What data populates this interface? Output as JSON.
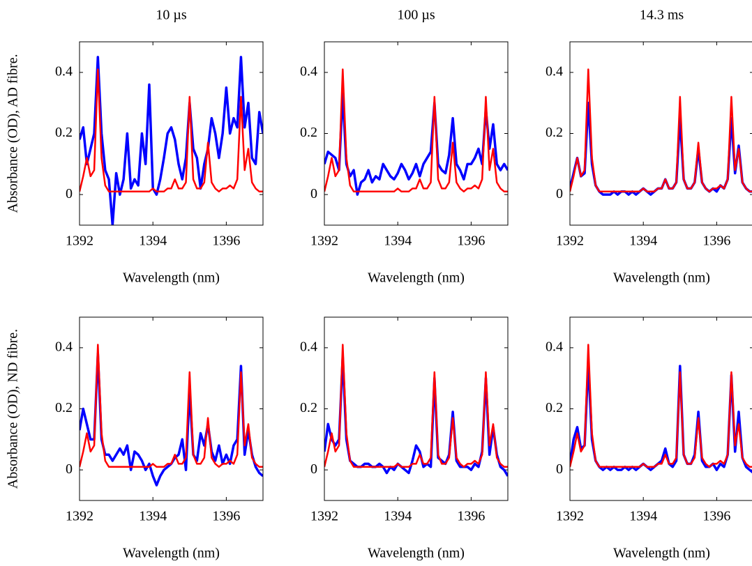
{
  "chart_data": [
    {
      "type": "line",
      "title": "10 µs",
      "ylabel": "Absorbance (OD), AD fibre.",
      "xlabel": "Wavelength (nm)",
      "xlim": [
        1392,
        1397
      ],
      "ylim": [
        -0.1,
        0.5
      ],
      "xticks": [
        1392,
        1394,
        1396
      ],
      "yticks": [
        0,
        0.2,
        0.4
      ],
      "x": [
        1392,
        1392.1,
        1392.2,
        1392.3,
        1392.4,
        1392.5,
        1392.6,
        1392.7,
        1392.8,
        1392.9,
        1393,
        1393.1,
        1393.2,
        1393.3,
        1393.4,
        1393.5,
        1393.6,
        1393.7,
        1393.8,
        1393.9,
        1394,
        1394.1,
        1394.2,
        1394.3,
        1394.4,
        1394.5,
        1394.6,
        1394.7,
        1394.8,
        1394.9,
        1395,
        1395.1,
        1395.2,
        1395.3,
        1395.4,
        1395.5,
        1395.6,
        1395.7,
        1395.8,
        1395.9,
        1396,
        1396.1,
        1396.2,
        1396.3,
        1396.4,
        1396.5,
        1396.6,
        1396.7,
        1396.8,
        1396.9,
        1397
      ],
      "series": [
        {
          "color": "#0000ff",
          "values": [
            0.18,
            0.22,
            0.1,
            0.15,
            0.2,
            0.45,
            0.2,
            0.08,
            0.05,
            -0.1,
            0.07,
            0.0,
            0.05,
            0.2,
            0.02,
            0.05,
            0.03,
            0.2,
            0.1,
            0.36,
            0.02,
            0.0,
            0.05,
            0.12,
            0.2,
            0.22,
            0.18,
            0.1,
            0.05,
            0.12,
            0.3,
            0.15,
            0.12,
            0.02,
            0.1,
            0.15,
            0.25,
            0.2,
            0.12,
            0.2,
            0.35,
            0.2,
            0.25,
            0.22,
            0.45,
            0.22,
            0.3,
            0.12,
            0.1,
            0.27,
            0.2
          ]
        },
        {
          "color": "#ff0000",
          "values": [
            0.01,
            0.06,
            0.12,
            0.06,
            0.08,
            0.41,
            0.12,
            0.03,
            0.01,
            0.01,
            0.01,
            0.01,
            0.01,
            0.01,
            0.01,
            0.01,
            0.01,
            0.01,
            0.01,
            0.01,
            0.02,
            0.01,
            0.01,
            0.01,
            0.02,
            0.02,
            0.05,
            0.02,
            0.02,
            0.04,
            0.32,
            0.05,
            0.02,
            0.02,
            0.04,
            0.17,
            0.04,
            0.02,
            0.01,
            0.02,
            0.02,
            0.03,
            0.02,
            0.05,
            0.32,
            0.08,
            0.15,
            0.04,
            0.02,
            0.01,
            0.01
          ]
        }
      ]
    },
    {
      "type": "line",
      "title": "100 µs",
      "xlabel": "Wavelength (nm)",
      "xlim": [
        1392,
        1397
      ],
      "ylim": [
        -0.1,
        0.5
      ],
      "xticks": [
        1392,
        1394,
        1396
      ],
      "yticks": [
        0,
        0.2,
        0.4
      ],
      "x": [
        1392,
        1392.1,
        1392.2,
        1392.3,
        1392.4,
        1392.5,
        1392.6,
        1392.7,
        1392.8,
        1392.9,
        1393,
        1393.1,
        1393.2,
        1393.3,
        1393.4,
        1393.5,
        1393.6,
        1393.7,
        1393.8,
        1393.9,
        1394,
        1394.1,
        1394.2,
        1394.3,
        1394.4,
        1394.5,
        1394.6,
        1394.7,
        1394.8,
        1394.9,
        1395,
        1395.1,
        1395.2,
        1395.3,
        1395.4,
        1395.5,
        1395.6,
        1395.7,
        1395.8,
        1395.9,
        1396,
        1396.1,
        1396.2,
        1396.3,
        1396.4,
        1396.5,
        1396.6,
        1396.7,
        1396.8,
        1396.9,
        1397
      ],
      "series": [
        {
          "color": "#0000ff",
          "values": [
            0.1,
            0.14,
            0.13,
            0.12,
            0.08,
            0.33,
            0.1,
            0.06,
            0.08,
            0.0,
            0.04,
            0.05,
            0.08,
            0.04,
            0.06,
            0.05,
            0.1,
            0.08,
            0.06,
            0.05,
            0.07,
            0.1,
            0.08,
            0.05,
            0.07,
            0.1,
            0.06,
            0.1,
            0.12,
            0.14,
            0.3,
            0.1,
            0.08,
            0.07,
            0.13,
            0.25,
            0.1,
            0.08,
            0.05,
            0.1,
            0.1,
            0.12,
            0.15,
            0.1,
            0.28,
            0.15,
            0.23,
            0.1,
            0.08,
            0.1,
            0.08
          ]
        },
        {
          "color": "#ff0000",
          "values": [
            0.01,
            0.06,
            0.12,
            0.06,
            0.08,
            0.41,
            0.12,
            0.03,
            0.01,
            0.01,
            0.01,
            0.01,
            0.01,
            0.01,
            0.01,
            0.01,
            0.01,
            0.01,
            0.01,
            0.01,
            0.02,
            0.01,
            0.01,
            0.01,
            0.02,
            0.02,
            0.05,
            0.02,
            0.02,
            0.04,
            0.32,
            0.05,
            0.02,
            0.02,
            0.04,
            0.17,
            0.04,
            0.02,
            0.01,
            0.02,
            0.02,
            0.03,
            0.02,
            0.05,
            0.32,
            0.08,
            0.15,
            0.04,
            0.02,
            0.01,
            0.01
          ]
        }
      ]
    },
    {
      "type": "line",
      "title": "14.3 ms",
      "xlabel": "Wavelength (nm)",
      "xlim": [
        1392,
        1397
      ],
      "ylim": [
        -0.1,
        0.5
      ],
      "xticks": [
        1392,
        1394,
        1396
      ],
      "yticks": [
        0,
        0.2,
        0.4
      ],
      "x": [
        1392,
        1392.1,
        1392.2,
        1392.3,
        1392.4,
        1392.5,
        1392.6,
        1392.7,
        1392.8,
        1392.9,
        1393,
        1393.1,
        1393.2,
        1393.3,
        1393.4,
        1393.5,
        1393.6,
        1393.7,
        1393.8,
        1393.9,
        1394,
        1394.1,
        1394.2,
        1394.3,
        1394.4,
        1394.5,
        1394.6,
        1394.7,
        1394.8,
        1394.9,
        1395,
        1395.1,
        1395.2,
        1395.3,
        1395.4,
        1395.5,
        1395.6,
        1395.7,
        1395.8,
        1395.9,
        1396,
        1396.1,
        1396.2,
        1396.3,
        1396.4,
        1396.5,
        1396.6,
        1396.7,
        1396.8,
        1396.9,
        1397
      ],
      "series": [
        {
          "color": "#0000ff",
          "values": [
            0.02,
            0.07,
            0.12,
            0.06,
            0.07,
            0.3,
            0.1,
            0.03,
            0.01,
            0.0,
            0.0,
            0.0,
            0.01,
            0.0,
            0.01,
            0.01,
            0.0,
            0.01,
            0.0,
            0.01,
            0.02,
            0.01,
            0.0,
            0.01,
            0.02,
            0.02,
            0.05,
            0.02,
            0.02,
            0.04,
            0.25,
            0.05,
            0.02,
            0.02,
            0.04,
            0.15,
            0.04,
            0.02,
            0.01,
            0.02,
            0.01,
            0.03,
            0.02,
            0.05,
            0.25,
            0.07,
            0.16,
            0.04,
            0.02,
            0.01,
            0.01
          ]
        },
        {
          "color": "#ff0000",
          "values": [
            0.01,
            0.06,
            0.12,
            0.06,
            0.08,
            0.41,
            0.12,
            0.03,
            0.01,
            0.01,
            0.01,
            0.01,
            0.01,
            0.01,
            0.01,
            0.01,
            0.01,
            0.01,
            0.01,
            0.01,
            0.02,
            0.01,
            0.01,
            0.01,
            0.02,
            0.02,
            0.05,
            0.02,
            0.02,
            0.04,
            0.32,
            0.05,
            0.02,
            0.02,
            0.04,
            0.17,
            0.04,
            0.02,
            0.01,
            0.02,
            0.02,
            0.03,
            0.02,
            0.05,
            0.32,
            0.08,
            0.15,
            0.04,
            0.02,
            0.01,
            0.01
          ]
        }
      ]
    },
    {
      "type": "line",
      "ylabel": "Absorbance (OD), ND fibre.",
      "xlabel": "Wavelength (nm)",
      "xlim": [
        1392,
        1397
      ],
      "ylim": [
        -0.1,
        0.5
      ],
      "xticks": [
        1392,
        1394,
        1396
      ],
      "yticks": [
        0,
        0.2,
        0.4
      ],
      "x": [
        1392,
        1392.1,
        1392.2,
        1392.3,
        1392.4,
        1392.5,
        1392.6,
        1392.7,
        1392.8,
        1392.9,
        1393,
        1393.1,
        1393.2,
        1393.3,
        1393.4,
        1393.5,
        1393.6,
        1393.7,
        1393.8,
        1393.9,
        1394,
        1394.1,
        1394.2,
        1394.3,
        1394.4,
        1394.5,
        1394.6,
        1394.7,
        1394.8,
        1394.9,
        1395,
        1395.1,
        1395.2,
        1395.3,
        1395.4,
        1395.5,
        1395.6,
        1395.7,
        1395.8,
        1395.9,
        1396,
        1396.1,
        1396.2,
        1396.3,
        1396.4,
        1396.5,
        1396.6,
        1396.7,
        1396.8,
        1396.9,
        1397
      ],
      "series": [
        {
          "color": "#0000ff",
          "values": [
            0.13,
            0.2,
            0.15,
            0.1,
            0.1,
            0.38,
            0.1,
            0.05,
            0.05,
            0.03,
            0.05,
            0.07,
            0.05,
            0.08,
            0.0,
            0.06,
            0.05,
            0.03,
            0.0,
            0.02,
            -0.02,
            -0.05,
            -0.02,
            0.0,
            0.01,
            0.02,
            0.04,
            0.05,
            0.1,
            0.0,
            0.26,
            0.05,
            0.03,
            0.12,
            0.08,
            0.15,
            0.06,
            0.03,
            0.08,
            0.02,
            0.05,
            0.02,
            0.08,
            0.1,
            0.34,
            0.05,
            0.13,
            0.05,
            0.01,
            -0.01,
            -0.02
          ]
        },
        {
          "color": "#ff0000",
          "values": [
            0.01,
            0.06,
            0.12,
            0.06,
            0.08,
            0.41,
            0.12,
            0.03,
            0.01,
            0.01,
            0.01,
            0.01,
            0.01,
            0.01,
            0.01,
            0.01,
            0.01,
            0.01,
            0.01,
            0.01,
            0.02,
            0.01,
            0.01,
            0.01,
            0.02,
            0.02,
            0.05,
            0.02,
            0.02,
            0.04,
            0.32,
            0.05,
            0.02,
            0.02,
            0.04,
            0.17,
            0.04,
            0.02,
            0.01,
            0.02,
            0.02,
            0.03,
            0.02,
            0.05,
            0.32,
            0.08,
            0.15,
            0.04,
            0.02,
            0.01,
            0.01
          ]
        }
      ]
    },
    {
      "type": "line",
      "xlabel": "Wavelength (nm)",
      "xlim": [
        1392,
        1397
      ],
      "ylim": [
        -0.1,
        0.5
      ],
      "xticks": [
        1392,
        1394,
        1396
      ],
      "yticks": [
        0,
        0.2,
        0.4
      ],
      "x": [
        1392,
        1392.1,
        1392.2,
        1392.3,
        1392.4,
        1392.5,
        1392.6,
        1392.7,
        1392.8,
        1392.9,
        1393,
        1393.1,
        1393.2,
        1393.3,
        1393.4,
        1393.5,
        1393.6,
        1393.7,
        1393.8,
        1393.9,
        1394,
        1394.1,
        1394.2,
        1394.3,
        1394.4,
        1394.5,
        1394.6,
        1394.7,
        1394.8,
        1394.9,
        1395,
        1395.1,
        1395.2,
        1395.3,
        1395.4,
        1395.5,
        1395.6,
        1395.7,
        1395.8,
        1395.9,
        1396,
        1396.1,
        1396.2,
        1396.3,
        1396.4,
        1396.5,
        1396.6,
        1396.7,
        1396.8,
        1396.9,
        1397
      ],
      "series": [
        {
          "color": "#0000ff",
          "values": [
            0.06,
            0.15,
            0.1,
            0.08,
            0.1,
            0.37,
            0.1,
            0.03,
            0.02,
            0.01,
            0.01,
            0.02,
            0.02,
            0.01,
            0.01,
            0.02,
            0.01,
            -0.01,
            0.01,
            0.0,
            0.02,
            0.01,
            0.0,
            -0.01,
            0.03,
            0.08,
            0.06,
            0.01,
            0.02,
            0.01,
            0.3,
            0.04,
            0.03,
            0.02,
            0.05,
            0.19,
            0.03,
            0.01,
            0.01,
            0.01,
            0.0,
            0.02,
            0.01,
            0.06,
            0.3,
            0.05,
            0.14,
            0.05,
            0.01,
            0.0,
            -0.02
          ]
        },
        {
          "color": "#ff0000",
          "values": [
            0.01,
            0.06,
            0.12,
            0.06,
            0.08,
            0.41,
            0.12,
            0.03,
            0.01,
            0.01,
            0.01,
            0.01,
            0.01,
            0.01,
            0.01,
            0.01,
            0.01,
            0.01,
            0.01,
            0.01,
            0.02,
            0.01,
            0.01,
            0.01,
            0.02,
            0.02,
            0.05,
            0.02,
            0.02,
            0.04,
            0.32,
            0.05,
            0.02,
            0.02,
            0.04,
            0.17,
            0.04,
            0.02,
            0.01,
            0.02,
            0.02,
            0.03,
            0.02,
            0.05,
            0.32,
            0.08,
            0.15,
            0.04,
            0.02,
            0.01,
            0.01
          ]
        }
      ]
    },
    {
      "type": "line",
      "xlabel": "Wavelength (nm)",
      "xlim": [
        1392,
        1397
      ],
      "ylim": [
        -0.1,
        0.5
      ],
      "xticks": [
        1392,
        1394,
        1396
      ],
      "yticks": [
        0,
        0.2,
        0.4
      ],
      "x": [
        1392,
        1392.1,
        1392.2,
        1392.3,
        1392.4,
        1392.5,
        1392.6,
        1392.7,
        1392.8,
        1392.9,
        1393,
        1393.1,
        1393.2,
        1393.3,
        1393.4,
        1393.5,
        1393.6,
        1393.7,
        1393.8,
        1393.9,
        1394,
        1394.1,
        1394.2,
        1394.3,
        1394.4,
        1394.5,
        1394.6,
        1394.7,
        1394.8,
        1394.9,
        1395,
        1395.1,
        1395.2,
        1395.3,
        1395.4,
        1395.5,
        1395.6,
        1395.7,
        1395.8,
        1395.9,
        1396,
        1396.1,
        1396.2,
        1396.3,
        1396.4,
        1396.5,
        1396.6,
        1396.7,
        1396.8,
        1396.9,
        1397
      ],
      "series": [
        {
          "color": "#0000ff",
          "values": [
            0.02,
            0.1,
            0.14,
            0.07,
            0.08,
            0.35,
            0.1,
            0.03,
            0.01,
            0.0,
            0.01,
            0.0,
            0.01,
            0.0,
            0.0,
            0.01,
            0.0,
            0.01,
            0.0,
            0.01,
            0.02,
            0.01,
            0.0,
            0.01,
            0.02,
            0.03,
            0.07,
            0.02,
            0.01,
            0.03,
            0.34,
            0.05,
            0.02,
            0.02,
            0.05,
            0.19,
            0.03,
            0.01,
            0.01,
            0.02,
            0.0,
            0.02,
            0.01,
            0.05,
            0.31,
            0.06,
            0.19,
            0.04,
            0.01,
            0.0,
            -0.01
          ]
        },
        {
          "color": "#ff0000",
          "values": [
            0.01,
            0.06,
            0.12,
            0.06,
            0.08,
            0.41,
            0.12,
            0.03,
            0.01,
            0.01,
            0.01,
            0.01,
            0.01,
            0.01,
            0.01,
            0.01,
            0.01,
            0.01,
            0.01,
            0.01,
            0.02,
            0.01,
            0.01,
            0.01,
            0.02,
            0.02,
            0.05,
            0.02,
            0.02,
            0.04,
            0.32,
            0.05,
            0.02,
            0.02,
            0.04,
            0.17,
            0.04,
            0.02,
            0.01,
            0.02,
            0.02,
            0.03,
            0.02,
            0.05,
            0.32,
            0.08,
            0.15,
            0.04,
            0.02,
            0.01,
            0.01
          ]
        }
      ]
    }
  ]
}
